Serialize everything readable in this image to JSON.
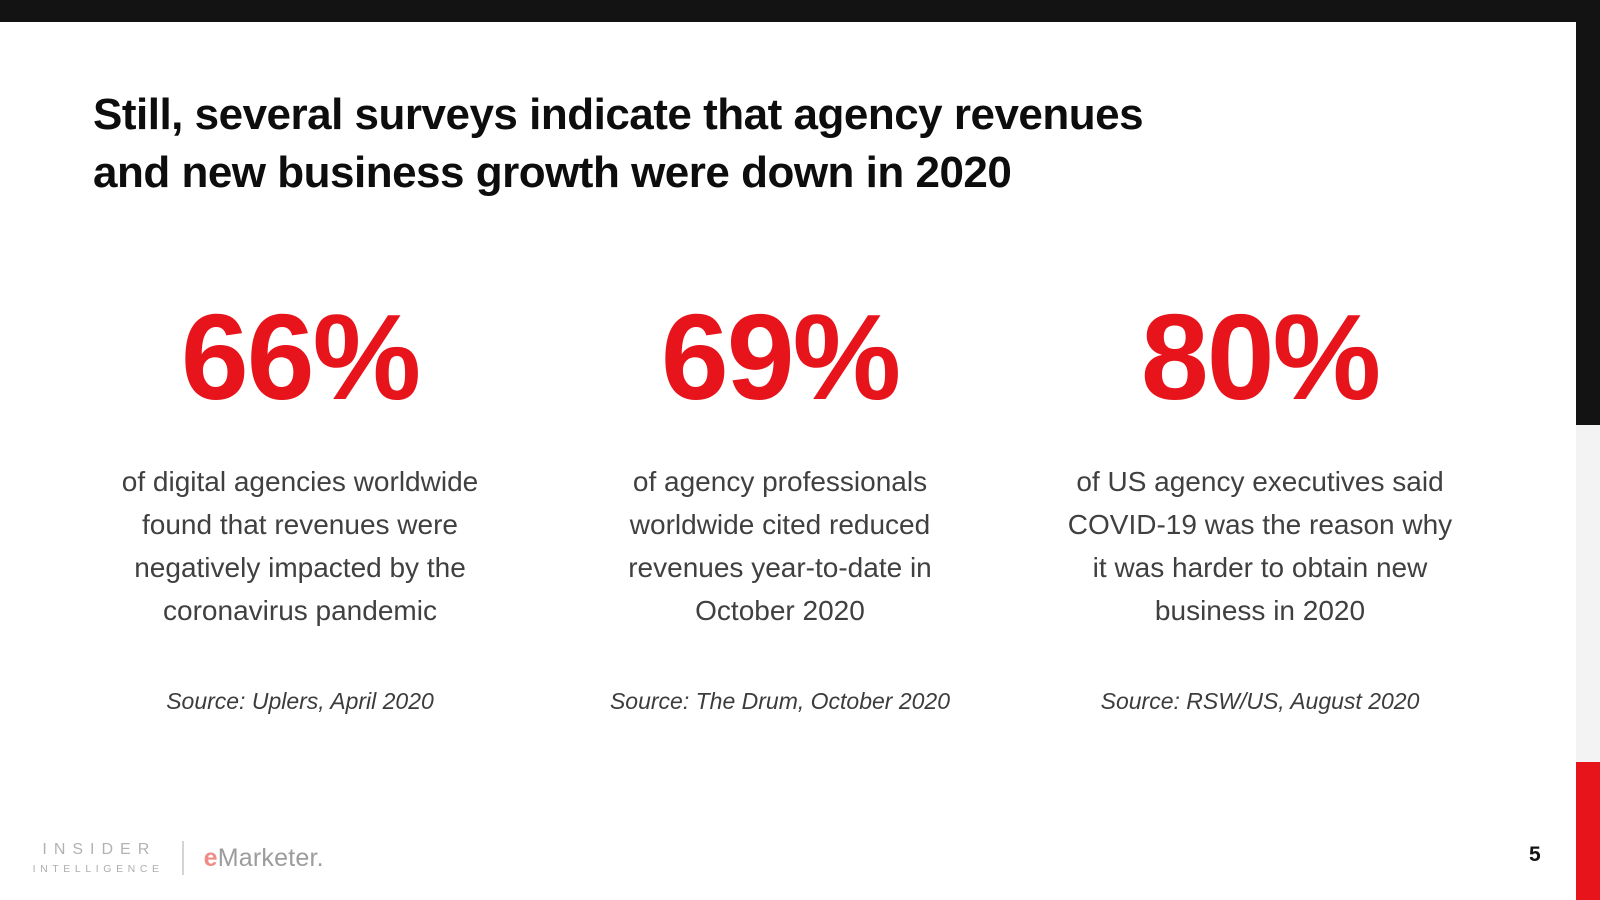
{
  "slide": {
    "title": {
      "line1": "Still, several surveys indicate that agency revenues",
      "line2": "and new business growth were down in 2020"
    },
    "page_number": "5"
  },
  "stats": [
    {
      "value": "66%",
      "description_lines": [
        "of digital agencies worldwide",
        "found that revenues were",
        "negatively impacted by the",
        "coronavirus pandemic"
      ],
      "source": "Source: Uplers, April 2020"
    },
    {
      "value": "69%",
      "description_lines": [
        "of agency professionals",
        "worldwide cited reduced",
        "revenues year-to-date in",
        "October 2020"
      ],
      "source": "Source: The Drum, October 2020"
    },
    {
      "value": "80%",
      "description_lines": [
        "of US agency executives said",
        "COVID-19 was the reason why",
        "it was harder to obtain new",
        "business in 2020"
      ],
      "source": "Source: RSW/US, August 2020"
    }
  ],
  "footer": {
    "brand_primary_line1": "INSIDER",
    "brand_primary_line2": "INTELLIGENCE",
    "brand_secondary_prefix": "e",
    "brand_secondary_rest": "Marketer."
  },
  "colors": {
    "accent_red": "#e8141c",
    "bar_black": "#131313",
    "strip_gray": "#f3f3f3",
    "body_text": "#404040"
  }
}
